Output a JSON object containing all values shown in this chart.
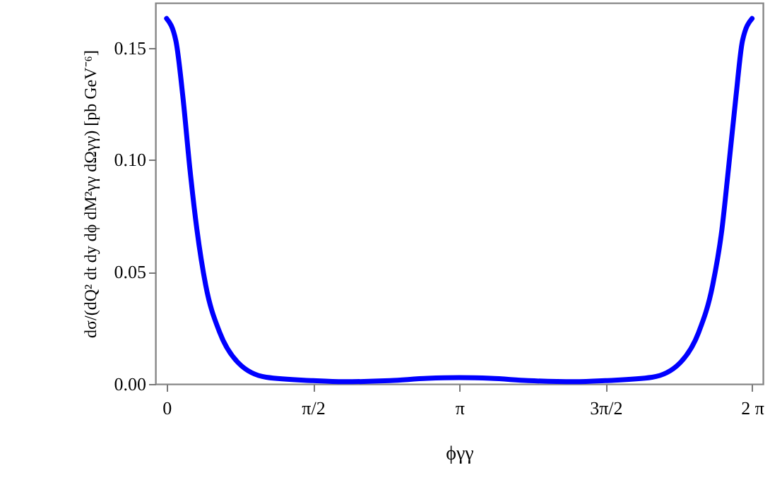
{
  "chart_data": {
    "type": "line",
    "xlabel": "ϕγγ",
    "ylabel": "dσ/(dQ² dt dy dϕ dM²γγ dΩγγ) [pb GeV⁻⁶]",
    "x": [
      0,
      0.1,
      0.175,
      0.25,
      0.325,
      0.42,
      0.57,
      0.77,
      1.07,
      1.57,
      1.9,
      2.4,
      2.8,
      3.1416,
      3.48,
      3.88,
      4.38,
      4.71,
      5.21,
      5.51,
      5.71,
      5.86,
      5.96,
      6.03,
      6.11,
      6.18,
      6.283
    ],
    "series": [
      {
        "color": "#0000ff",
        "values": [
          0.163,
          0.153,
          0.128,
          0.096,
          0.069,
          0.044,
          0.023,
          0.0094,
          0.003,
          0.0015,
          0.001,
          0.0015,
          0.0025,
          0.0028,
          0.0025,
          0.0015,
          0.001,
          0.0015,
          0.003,
          0.0094,
          0.023,
          0.044,
          0.069,
          0.096,
          0.128,
          0.153,
          0.163
        ]
      }
    ],
    "xlim": [
      -0.12,
      6.4
    ],
    "ylim": [
      0,
      0.17
    ],
    "xticks": [
      0,
      {
        "value": 1.5708,
        "label": "π/2"
      },
      {
        "value": 3.1416,
        "label": "π"
      },
      {
        "value": 4.7124,
        "label": "3π/2"
      },
      {
        "value": 6.2832,
        "label": "2 π"
      }
    ],
    "yticks": [
      {
        "value": 0,
        "label": "0.00"
      },
      {
        "value": 0.05,
        "label": "0.05"
      },
      {
        "value": 0.1,
        "label": "0.10"
      },
      {
        "value": 0.15,
        "label": "0.15"
      }
    ],
    "grid": false,
    "line_style": "solid",
    "marker": "none"
  }
}
